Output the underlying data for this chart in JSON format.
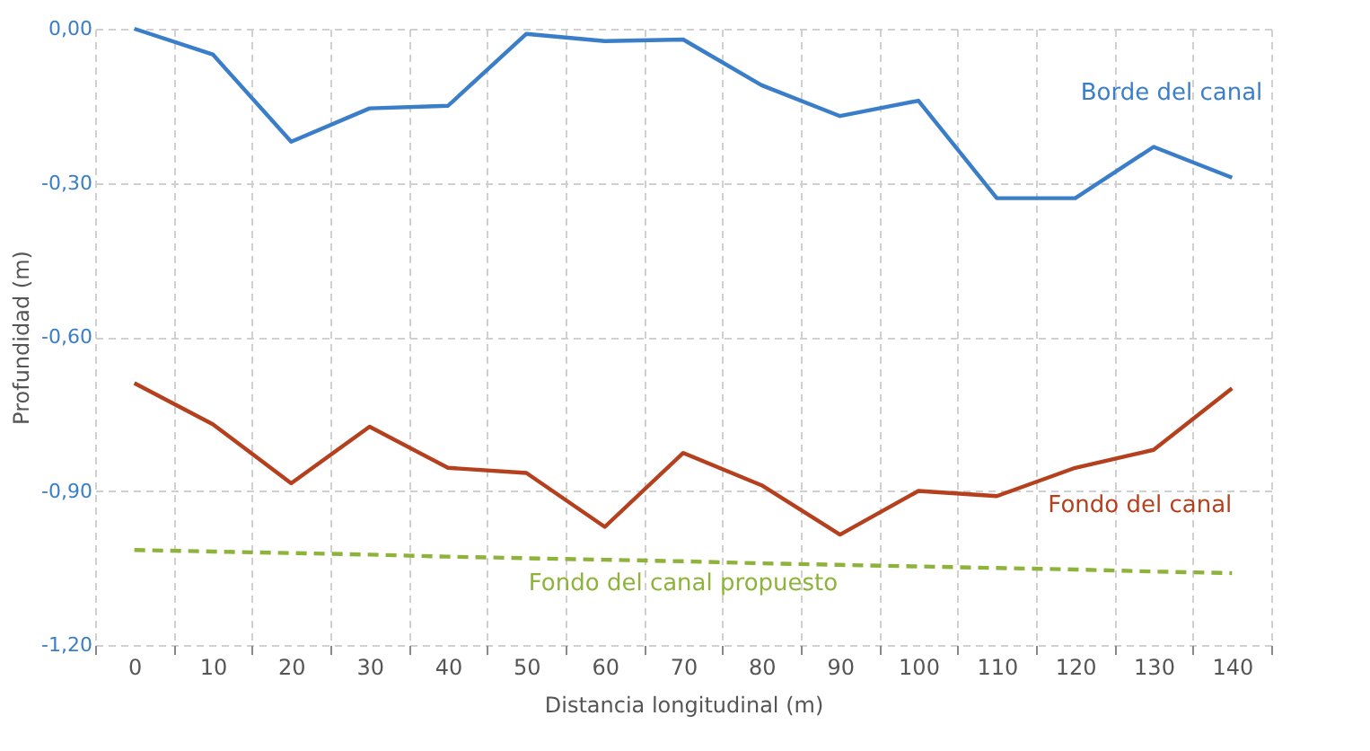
{
  "chart_data": {
    "type": "line",
    "xlabel": "Distancia longitudinal (m)",
    "ylabel": "Profundidad (m)",
    "categories": [
      "0",
      "10",
      "20",
      "30",
      "40",
      "50",
      "60",
      "70",
      "80",
      "90",
      "100",
      "110",
      "120",
      "130",
      "140"
    ],
    "series": [
      {
        "name": "Borde del canal",
        "color": "#3a7dc9",
        "values": [
          0.0,
          -0.05,
          -0.22,
          -0.155,
          -0.15,
          -0.01,
          -0.024,
          -0.021,
          -0.11,
          -0.17,
          -0.14,
          -0.33,
          -0.33,
          -0.23,
          -0.29
        ]
      },
      {
        "name": "Fondo del canal",
        "color": "#b5401e",
        "values": [
          -0.69,
          -0.77,
          -0.885,
          -0.775,
          -0.855,
          -0.865,
          -0.97,
          -0.826,
          -0.889,
          -0.985,
          -0.9,
          -0.91,
          -0.855,
          -0.82,
          -0.7
        ]
      },
      {
        "name": "Fondo del canal propuesto",
        "color": "#8db33a",
        "line_style": "dashed",
        "values": [
          -1.015,
          -1.018,
          -1.021,
          -1.024,
          -1.028,
          -1.031,
          -1.034,
          -1.037,
          -1.041,
          -1.044,
          -1.047,
          -1.05,
          -1.053,
          -1.057,
          -1.06
        ]
      }
    ],
    "ylim": [
      -1.2,
      0.0
    ],
    "yticks": [
      {
        "value": 0.0,
        "label": "0,00"
      },
      {
        "value": -0.3,
        "label": "-0,30"
      },
      {
        "value": -0.6,
        "label": "-0,60"
      },
      {
        "value": -0.9,
        "label": "-0,90"
      },
      {
        "value": -1.2,
        "label": "-1,20"
      }
    ],
    "grid": true
  }
}
